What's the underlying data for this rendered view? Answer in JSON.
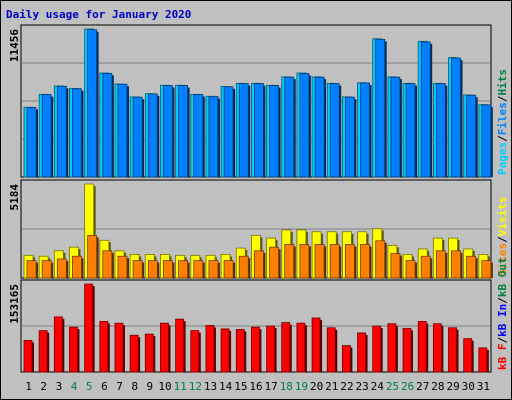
{
  "title": "Daily usage for January 2020",
  "colors": {
    "hits": "#00ccff",
    "files": "#0080ff",
    "pages": "#00ccff",
    "visits": "#ffff00",
    "sites": "#ff8000",
    "kbytes": "#ff0000",
    "weekend_label": "#008040",
    "weekday_label": "#000000",
    "kb_in": "#0000ff",
    "kb_out": "#008040",
    "kb_f": "#ff0000"
  },
  "chart_data": [
    {
      "type": "bar",
      "panel": "top",
      "max_label": "11456",
      "ylim": [
        0,
        11456
      ],
      "right_legend": [
        "Pages",
        "Files",
        "Hits"
      ],
      "categories": [
        "1",
        "2",
        "3",
        "4",
        "5",
        "6",
        "7",
        "8",
        "9",
        "10",
        "11",
        "12",
        "13",
        "14",
        "15",
        "16",
        "17",
        "18",
        "19",
        "20",
        "21",
        "22",
        "23",
        "24",
        "25",
        "26",
        "27",
        "28",
        "29",
        "30",
        "31"
      ],
      "weekend_days": [
        "4",
        "5",
        "11",
        "12",
        "18",
        "19",
        "25",
        "26"
      ],
      "series": [
        {
          "name": "Hits",
          "values": [
            5400,
            6400,
            7050,
            6850,
            11456,
            8050,
            7200,
            6200,
            6450,
            7100,
            7100,
            6400,
            6250,
            7000,
            7250,
            7250,
            7100,
            7750,
            8050,
            7750,
            7250,
            6200,
            7300,
            10700,
            7750,
            7250,
            10500,
            7250,
            9250,
            6350,
            5600
          ]
        },
        {
          "name": "Files",
          "values": [
            5380,
            6380,
            7020,
            6830,
            11400,
            8020,
            7180,
            6180,
            6430,
            7080,
            7080,
            6380,
            6230,
            6980,
            7230,
            7230,
            7080,
            7730,
            8020,
            7730,
            7230,
            6180,
            7280,
            10650,
            7730,
            7230,
            10450,
            7230,
            9200,
            6330,
            5580
          ]
        }
      ]
    },
    {
      "type": "bar",
      "panel": "middle",
      "max_label": "5184",
      "ylim": [
        0,
        5184
      ],
      "right_legend": [
        "Sites",
        "Visits"
      ],
      "categories": [
        "1",
        "2",
        "3",
        "4",
        "5",
        "6",
        "7",
        "8",
        "9",
        "10",
        "11",
        "12",
        "13",
        "14",
        "15",
        "16",
        "17",
        "18",
        "19",
        "20",
        "21",
        "22",
        "23",
        "24",
        "25",
        "26",
        "27",
        "28",
        "29",
        "30",
        "31"
      ],
      "series": [
        {
          "name": "Visits",
          "values": [
            1250,
            1200,
            1500,
            1700,
            5184,
            2080,
            1500,
            1300,
            1300,
            1300,
            1250,
            1250,
            1250,
            1300,
            1650,
            2350,
            2200,
            2650,
            2650,
            2550,
            2550,
            2550,
            2550,
            2720,
            1800,
            1300,
            1600,
            2200,
            2200,
            1600,
            1300
          ]
        },
        {
          "name": "Sites",
          "values": [
            960,
            960,
            1050,
            1200,
            2350,
            1500,
            1200,
            960,
            960,
            960,
            960,
            960,
            960,
            960,
            1200,
            1500,
            1700,
            1850,
            1850,
            1850,
            1850,
            1850,
            1850,
            2050,
            1350,
            960,
            1200,
            1500,
            1500,
            1200,
            960
          ]
        }
      ]
    },
    {
      "type": "bar",
      "panel": "bottom",
      "max_label": "153165",
      "ylim": [
        0,
        153165
      ],
      "right_legend": [
        "kB F",
        "kB In",
        "kB Out"
      ],
      "categories": [
        "1",
        "2",
        "3",
        "4",
        "5",
        "6",
        "7",
        "8",
        "9",
        "10",
        "11",
        "12",
        "13",
        "14",
        "15",
        "16",
        "17",
        "18",
        "19",
        "20",
        "21",
        "22",
        "23",
        "24",
        "25",
        "26",
        "27",
        "28",
        "29",
        "30",
        "31"
      ],
      "series": [
        {
          "name": "kB F",
          "values": [
            55000,
            72000,
            96000,
            78000,
            153165,
            88000,
            85000,
            64000,
            66000,
            85000,
            92000,
            72000,
            81000,
            75000,
            74000,
            78000,
            80000,
            86000,
            85000,
            94000,
            77000,
            46000,
            68000,
            80000,
            84000,
            76000,
            88000,
            84000,
            77000,
            58000,
            42000
          ]
        }
      ]
    }
  ]
}
